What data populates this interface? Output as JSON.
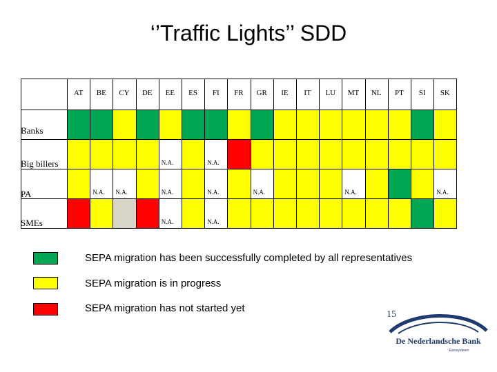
{
  "title": "‘’Traffic Lights’’ SDD",
  "columns": [
    "AT",
    "BE",
    "CY",
    "DE",
    "EE",
    "ES",
    "FI",
    "FR",
    "GR",
    "IE",
    "IT",
    "LU",
    "MT",
    "NL",
    "PT",
    "SI",
    "SK"
  ],
  "rows": [
    {
      "label": "Banks",
      "cells": [
        "green",
        "green",
        "yellow",
        "green",
        "yellow",
        "green",
        "green",
        "yellow",
        "green",
        "yellow",
        "yellow",
        "yellow",
        "yellow",
        "yellow",
        "yellow",
        "green",
        "yellow"
      ],
      "na": []
    },
    {
      "label": "Big billers",
      "cells": [
        "yellow",
        "yellow",
        "yellow",
        "yellow",
        "white",
        "yellow",
        "white",
        "red",
        "yellow",
        "yellow",
        "yellow",
        "yellow",
        "yellow",
        "yellow",
        "yellow",
        "yellow",
        "yellow"
      ],
      "na": [
        4,
        6
      ]
    },
    {
      "label": "PA",
      "cells": [
        "yellow",
        "white",
        "white",
        "yellow",
        "white",
        "yellow",
        "white",
        "yellow",
        "white",
        "yellow",
        "yellow",
        "yellow",
        "white",
        "yellow",
        "green",
        "yellow",
        "white"
      ],
      "na": [
        1,
        2,
        4,
        6,
        8,
        12,
        16
      ]
    },
    {
      "label": "SMEs",
      "cells": [
        "red",
        "yellow",
        "gray",
        "red",
        "white",
        "yellow",
        "white",
        "yellow",
        "yellow",
        "yellow",
        "yellow",
        "yellow",
        "yellow",
        "yellow",
        "yellow",
        "green",
        "yellow"
      ],
      "na": [
        4,
        6
      ]
    }
  ],
  "na_text": "N.A.",
  "legend": [
    {
      "color": "green",
      "text": "SEPA migration has been successfully completed by all representatives"
    },
    {
      "color": "yellow",
      "text": "SEPA migration is in progress"
    },
    {
      "color": "red",
      "text": "SEPA migration has not started yet"
    }
  ],
  "colors": {
    "green": "#00a651",
    "yellow": "#ffff00",
    "red": "#ff0000",
    "gray": "#d9d5c8",
    "white": "#ffffff",
    "bank_blue": "#1f3a6e"
  },
  "slide_number": "15",
  "logo": {
    "name": "De Nederlandsche Bank",
    "sub": "Eurosysteem"
  }
}
